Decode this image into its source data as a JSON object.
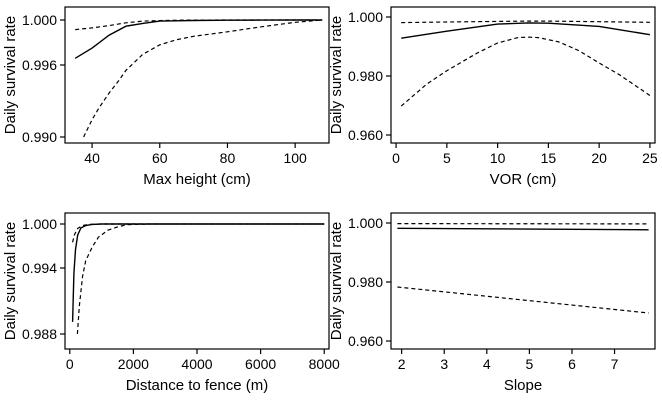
{
  "chart_data": [
    {
      "type": "line",
      "xlabel": "Max height (cm)",
      "ylabel": "Daily survival rate",
      "xlim": [
        32,
        110
      ],
      "ylim": [
        0.99,
        1.0
      ],
      "y_scale": "nonlinear",
      "xticks": [
        40,
        60,
        80,
        100
      ],
      "xtick_labels": [
        "40",
        "60",
        "80",
        "100"
      ],
      "yticks": [
        0.99,
        0.996,
        1.0
      ],
      "ytick_labels": [
        "0.990",
        "0.996",
        "1.000"
      ],
      "series": [
        {
          "style": "solid",
          "x": [
            35,
            40,
            45,
            50,
            55,
            60,
            65,
            70,
            80,
            90,
            100,
            108
          ],
          "y": [
            0.9966,
            0.9975,
            0.99865,
            0.99945,
            0.9997,
            0.9999,
            0.99993,
            0.99996,
            0.99998,
            0.99999,
            1.0,
            1.0
          ]
        },
        {
          "style": "dashed",
          "x": [
            35,
            40,
            45,
            50,
            55,
            60,
            65,
            70,
            80,
            90,
            100,
            108
          ],
          "y": [
            0.99915,
            0.9993,
            0.9995,
            0.99975,
            0.9999,
            0.99995,
            0.99998,
            0.99999,
            1.0,
            1.0,
            1.0,
            1.0
          ]
        },
        {
          "style": "dashed",
          "x": [
            37.5,
            40,
            42,
            45,
            48,
            50,
            55,
            60,
            65,
            70,
            80,
            90,
            100,
            108
          ],
          "y": [
            0.99,
            0.99145,
            0.9924,
            0.99365,
            0.99475,
            0.99555,
            0.99695,
            0.9978,
            0.99825,
            0.99855,
            0.99895,
            0.9994,
            0.9998,
            1.0
          ]
        }
      ]
    },
    {
      "type": "line",
      "xlabel": "VOR (cm)",
      "ylabel": "Daily survival rate",
      "xlim": [
        -0.5,
        25.5
      ],
      "ylim": [
        0.96,
        1.0
      ],
      "xticks": [
        0,
        5,
        10,
        15,
        20,
        25
      ],
      "xtick_labels": [
        "0",
        "5",
        "10",
        "15",
        "20",
        "25"
      ],
      "yticks": [
        0.96,
        0.98,
        1.0
      ],
      "ytick_labels": [
        "0.960",
        "0.980",
        "1.000"
      ],
      "series": [
        {
          "style": "solid",
          "x": [
            0.5,
            5,
            10,
            13,
            15,
            20,
            25
          ],
          "y": [
            0.9928,
            0.9952,
            0.9976,
            0.998,
            0.9979,
            0.9968,
            0.994
          ]
        },
        {
          "style": "dashed",
          "x": [
            0.5,
            5,
            10,
            13,
            15,
            20,
            25
          ],
          "y": [
            0.9981,
            0.9983,
            0.9985,
            0.9986,
            0.9986,
            0.9984,
            0.9982
          ]
        },
        {
          "style": "dashed",
          "x": [
            0.5,
            3,
            5,
            8,
            10,
            12,
            13,
            14,
            16,
            18,
            20,
            22,
            25
          ],
          "y": [
            0.9698,
            0.9772,
            0.9818,
            0.9878,
            0.9912,
            0.993,
            0.9932,
            0.993,
            0.9916,
            0.9886,
            0.9844,
            0.9804,
            0.9734
          ]
        }
      ]
    },
    {
      "type": "line",
      "xlabel": "Distance to fence (m)",
      "ylabel": "Daily survival rate",
      "xlim": [
        -150,
        8150
      ],
      "ylim": [
        0.988,
        1.0
      ],
      "y_scale": "nonlinear",
      "xticks": [
        0,
        2000,
        4000,
        6000,
        8000
      ],
      "xtick_labels": [
        "0",
        "2000",
        "4000",
        "6000",
        "8000"
      ],
      "yticks": [
        0.988,
        0.994,
        1.0
      ],
      "ytick_labels": [
        "0.988",
        "0.994",
        "1.000"
      ],
      "series": [
        {
          "style": "solid",
          "x": [
            90,
            130,
            180,
            250,
            350,
            500,
            700,
            1000,
            2000,
            4000,
            8000
          ],
          "y": [
            0.9891,
            0.9935,
            0.9965,
            0.9985,
            0.99945,
            0.9998,
            0.99995,
            1.0,
            1.0,
            1.0,
            1.0
          ]
        },
        {
          "style": "dashed",
          "x": [
            90,
            150,
            250,
            400,
            600,
            1000,
            2000,
            8000
          ],
          "y": [
            0.9975,
            0.99855,
            0.9994,
            0.9998,
            0.99995,
            1.0,
            1.0,
            1.0
          ]
        },
        {
          "style": "dashed",
          "x": [
            240,
            300,
            400,
            500,
            700,
            900,
            1200,
            1500,
            1800,
            2500,
            4000,
            8000
          ],
          "y": [
            0.988,
            0.9905,
            0.9932,
            0.995,
            0.9968,
            0.9982,
            0.99915,
            0.9996,
            0.9999,
            1.0,
            1.0,
            1.0
          ]
        }
      ]
    },
    {
      "type": "line",
      "xlabel": "Slope",
      "ylabel": "Daily survival rate",
      "xlim": [
        1.75,
        7.95
      ],
      "ylim": [
        0.96,
        1.0
      ],
      "xticks": [
        2,
        3,
        4,
        5,
        6,
        7
      ],
      "xtick_labels": [
        "2",
        "3",
        "4",
        "5",
        "6",
        "7"
      ],
      "yticks": [
        0.96,
        0.98,
        1.0
      ],
      "ytick_labels": [
        "0.960",
        "0.980",
        "1.000"
      ],
      "series": [
        {
          "style": "solid",
          "x": [
            1.9,
            7.8
          ],
          "y": [
            0.9982,
            0.9977
          ]
        },
        {
          "style": "dashed",
          "x": [
            1.9,
            7.8
          ],
          "y": [
            0.9998,
            0.9997
          ]
        },
        {
          "style": "dashed",
          "x": [
            1.9,
            7.8
          ],
          "y": [
            0.9783,
            0.9695
          ]
        }
      ]
    }
  ]
}
